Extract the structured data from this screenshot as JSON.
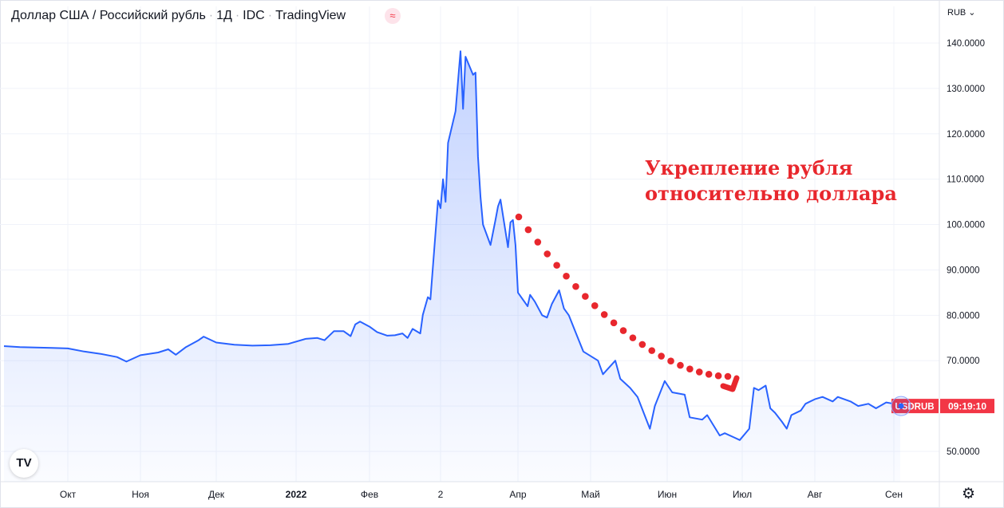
{
  "header": {
    "symbol": "Доллар США / Российский рубль",
    "interval": "1Д",
    "source": "IDC",
    "platform": "TradingView",
    "badge_icon": "approx-equal-icon"
  },
  "axis": {
    "currency": "RUB",
    "settings_icon": "gear-icon"
  },
  "logo": {
    "text": "TV"
  },
  "price_tag": {
    "symbol": "USDRUB",
    "countdown": "09:19:10",
    "color": "#f23645"
  },
  "annotation": {
    "lines": [
      "Укрепление рубля",
      "относительно доллара"
    ],
    "color": "#e8272d"
  },
  "chart_data": {
    "type": "area",
    "line_color": "#2962ff",
    "grid": true,
    "ylim": [
      45,
      145
    ],
    "yticks": [
      {
        "value": 140,
        "label": "140.0000"
      },
      {
        "value": 130,
        "label": "130.0000"
      },
      {
        "value": 120,
        "label": "120.0000"
      },
      {
        "value": 110,
        "label": "110.0000"
      },
      {
        "value": 100,
        "label": "100.0000"
      },
      {
        "value": 90,
        "label": "90.0000"
      },
      {
        "value": 80,
        "label": "80.0000"
      },
      {
        "value": 70,
        "label": "70.0000"
      },
      {
        "value": 50,
        "label": "50.0000"
      }
    ],
    "xticks": [
      {
        "date": "2021-10-01",
        "label": "Окт"
      },
      {
        "date": "2021-11-01",
        "label": "Ноя"
      },
      {
        "date": "2021-12-01",
        "label": "Дек"
      },
      {
        "date": "2022-01-01",
        "label": "2022"
      },
      {
        "date": "2022-02-01",
        "label": "Фев"
      },
      {
        "date": "2022-03-01",
        "label": "2"
      },
      {
        "date": "2022-04-01",
        "label": "Апр"
      },
      {
        "date": "2022-05-01",
        "label": "Май"
      },
      {
        "date": "2022-06-01",
        "label": "Июн"
      },
      {
        "date": "2022-07-01",
        "label": "Июл"
      },
      {
        "date": "2022-08-01",
        "label": "Авг"
      },
      {
        "date": "2022-09-01",
        "label": "Сен"
      }
    ],
    "series": [
      {
        "points": [
          [
            "2021-09-03",
            73.2
          ],
          [
            "2021-09-10",
            73.0
          ],
          [
            "2021-09-17",
            72.9
          ],
          [
            "2021-09-24",
            72.8
          ],
          [
            "2021-10-01",
            72.7
          ],
          [
            "2021-10-08",
            72.0
          ],
          [
            "2021-10-15",
            71.5
          ],
          [
            "2021-10-22",
            70.8
          ],
          [
            "2021-10-26",
            69.8
          ],
          [
            "2021-11-01",
            71.2
          ],
          [
            "2021-11-08",
            71.8
          ],
          [
            "2021-11-12",
            72.5
          ],
          [
            "2021-11-15",
            71.3
          ],
          [
            "2021-11-19",
            73.0
          ],
          [
            "2021-11-24",
            74.5
          ],
          [
            "2021-11-26",
            75.3
          ],
          [
            "2021-12-01",
            74.0
          ],
          [
            "2021-12-08",
            73.5
          ],
          [
            "2021-12-15",
            73.3
          ],
          [
            "2021-12-22",
            73.4
          ],
          [
            "2021-12-29",
            73.7
          ],
          [
            "2022-01-05",
            74.8
          ],
          [
            "2022-01-10",
            75.0
          ],
          [
            "2022-01-13",
            74.5
          ],
          [
            "2022-01-17",
            76.5
          ],
          [
            "2022-01-21",
            76.5
          ],
          [
            "2022-01-24",
            75.4
          ],
          [
            "2022-01-26",
            78.0
          ],
          [
            "2022-01-28",
            78.6
          ],
          [
            "2022-02-01",
            77.5
          ],
          [
            "2022-02-04",
            76.3
          ],
          [
            "2022-02-08",
            75.5
          ],
          [
            "2022-02-11",
            75.6
          ],
          [
            "2022-02-14",
            76.0
          ],
          [
            "2022-02-16",
            75.0
          ],
          [
            "2022-02-18",
            77.0
          ],
          [
            "2022-02-21",
            76.0
          ],
          [
            "2022-02-22",
            80.1
          ],
          [
            "2022-02-24",
            84.0
          ],
          [
            "2022-02-25",
            83.5
          ],
          [
            "2022-02-28",
            105.3
          ],
          [
            "2022-03-01",
            103.6
          ],
          [
            "2022-03-02",
            110.0
          ],
          [
            "2022-03-03",
            105.0
          ],
          [
            "2022-03-04",
            118.0
          ],
          [
            "2022-03-07",
            125.0
          ],
          [
            "2022-03-09",
            138.2
          ],
          [
            "2022-03-10",
            125.5
          ],
          [
            "2022-03-11",
            137.0
          ],
          [
            "2022-03-14",
            133.0
          ],
          [
            "2022-03-15",
            133.5
          ],
          [
            "2022-03-16",
            115.0
          ],
          [
            "2022-03-17",
            106.0
          ],
          [
            "2022-03-18",
            100.0
          ],
          [
            "2022-03-21",
            95.5
          ],
          [
            "2022-03-23",
            101.0
          ],
          [
            "2022-03-24",
            104.0
          ],
          [
            "2022-03-25",
            105.5
          ],
          [
            "2022-03-28",
            95.0
          ],
          [
            "2022-03-29",
            100.5
          ],
          [
            "2022-03-30",
            101.0
          ],
          [
            "2022-03-31",
            95.5
          ],
          [
            "2022-04-01",
            85.0
          ],
          [
            "2022-04-05",
            82.0
          ],
          [
            "2022-04-06",
            84.5
          ],
          [
            "2022-04-08",
            83.0
          ],
          [
            "2022-04-11",
            80.0
          ],
          [
            "2022-04-13",
            79.5
          ],
          [
            "2022-04-15",
            82.5
          ],
          [
            "2022-04-18",
            85.5
          ],
          [
            "2022-04-20",
            81.5
          ],
          [
            "2022-04-22",
            80.0
          ],
          [
            "2022-04-25",
            76.0
          ],
          [
            "2022-04-28",
            72.0
          ],
          [
            "2022-05-04",
            70.0
          ],
          [
            "2022-05-06",
            67.0
          ],
          [
            "2022-05-11",
            70.0
          ],
          [
            "2022-05-13",
            66.0
          ],
          [
            "2022-05-17",
            64.0
          ],
          [
            "2022-05-20",
            62.0
          ],
          [
            "2022-05-25",
            55.0
          ],
          [
            "2022-05-27",
            60.0
          ],
          [
            "2022-05-31",
            65.5
          ],
          [
            "2022-06-03",
            63.0
          ],
          [
            "2022-06-08",
            62.5
          ],
          [
            "2022-06-10",
            57.5
          ],
          [
            "2022-06-15",
            57.0
          ],
          [
            "2022-06-17",
            58.0
          ],
          [
            "2022-06-22",
            53.5
          ],
          [
            "2022-06-24",
            54.0
          ],
          [
            "2022-06-28",
            53.0
          ],
          [
            "2022-06-30",
            52.5
          ],
          [
            "2022-07-04",
            55.0
          ],
          [
            "2022-07-06",
            64.0
          ],
          [
            "2022-07-08",
            63.5
          ],
          [
            "2022-07-11",
            64.5
          ],
          [
            "2022-07-13",
            59.5
          ],
          [
            "2022-07-15",
            58.5
          ],
          [
            "2022-07-18",
            56.5
          ],
          [
            "2022-07-20",
            55.0
          ],
          [
            "2022-07-22",
            58.0
          ],
          [
            "2022-07-26",
            59.0
          ],
          [
            "2022-07-28",
            60.5
          ],
          [
            "2022-08-01",
            61.5
          ],
          [
            "2022-08-04",
            62.0
          ],
          [
            "2022-08-08",
            61.0
          ],
          [
            "2022-08-10",
            62.0
          ],
          [
            "2022-08-15",
            61.0
          ],
          [
            "2022-08-18",
            60.0
          ],
          [
            "2022-08-22",
            60.5
          ],
          [
            "2022-08-25",
            59.5
          ],
          [
            "2022-08-29",
            60.8
          ],
          [
            "2022-09-01",
            60.5
          ],
          [
            "2022-09-02",
            61.3
          ],
          [
            "2022-09-05",
            60.0
          ]
        ]
      }
    ]
  }
}
